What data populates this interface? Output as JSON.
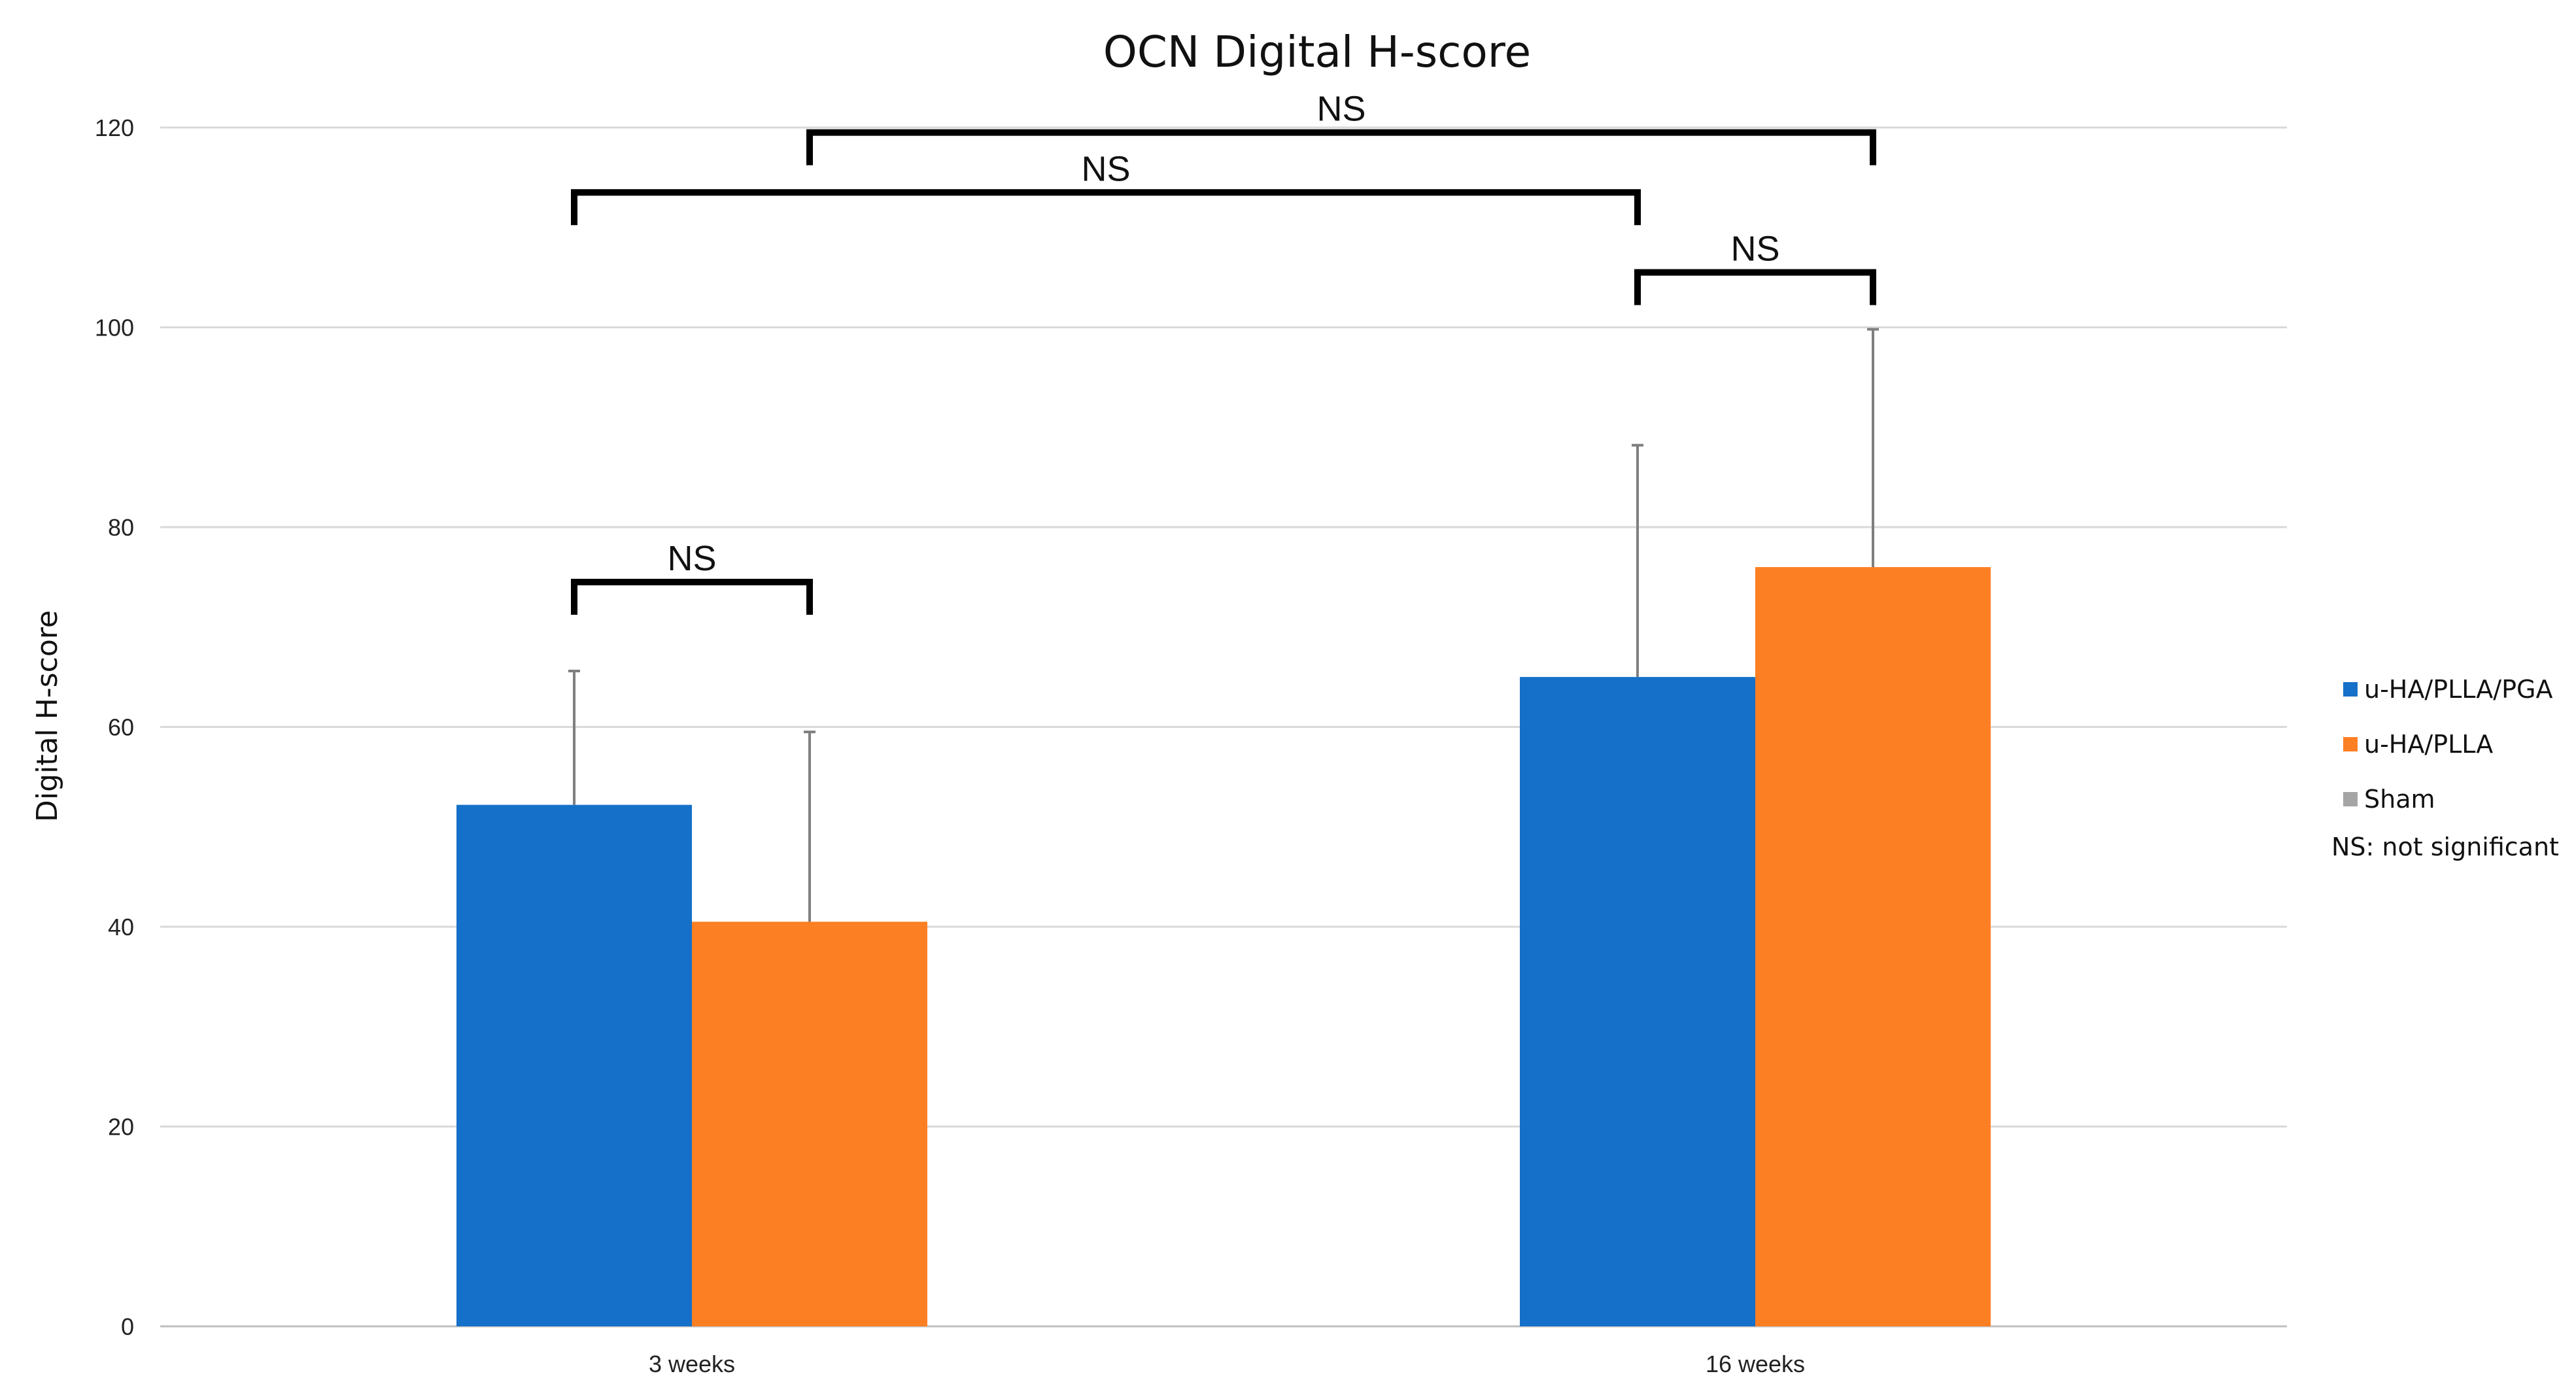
{
  "chart_data": {
    "type": "bar",
    "title": "OCN Digital H-score",
    "xlabel": "",
    "ylabel": "Digital H-score",
    "ylim": [
      0,
      120
    ],
    "yticks": [
      0,
      20,
      40,
      60,
      80,
      100,
      120
    ],
    "grid": true,
    "legend_position": "right",
    "categories": [
      "3 weeks",
      "16 weeks"
    ],
    "series": [
      {
        "name": "u-HA/PLLA/PGA",
        "color": "#1570C9",
        "values": [
          52.2,
          65.0
        ],
        "error": [
          13.4,
          23.2
        ]
      },
      {
        "name": "u-HA/PLLA",
        "color": "#FD7F23",
        "values": [
          40.5,
          76.0
        ],
        "error": [
          19.0,
          23.8
        ]
      },
      {
        "name": "Sham",
        "color": "#A5A5A5",
        "values": [
          null,
          null
        ],
        "error": [
          null,
          null
        ]
      }
    ],
    "annotations": [
      {
        "text": "NS",
        "from": [
          0,
          0
        ],
        "to": [
          0,
          1
        ],
        "y": 74.5
      },
      {
        "text": "NS",
        "from": [
          1,
          0
        ],
        "to": [
          1,
          1
        ],
        "y": 105.5
      },
      {
        "text": "NS",
        "from": [
          0,
          0
        ],
        "to": [
          1,
          0
        ],
        "y": 113.5
      },
      {
        "text": "NS",
        "from": [
          0,
          1
        ],
        "to": [
          1,
          1
        ],
        "y": 119.5
      }
    ],
    "legend_note": "NS: not significant"
  }
}
